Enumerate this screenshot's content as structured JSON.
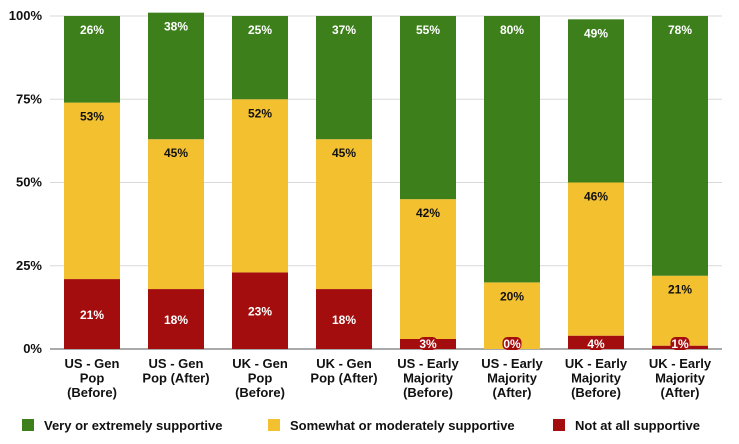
{
  "chart_data": {
    "type": "bar",
    "stacked": true,
    "title": "",
    "xlabel": "",
    "ylabel": "",
    "ylim": [
      0,
      100
    ],
    "yticks": [
      "0%",
      "25%",
      "50%",
      "75%",
      "100%"
    ],
    "ytick_values": [
      0,
      25,
      50,
      75,
      100
    ],
    "grid": true,
    "legend_position": "bottom",
    "categories": [
      [
        "US - Gen",
        "Pop",
        "(Before)"
      ],
      [
        "US - Gen",
        "Pop (After)"
      ],
      [
        "UK - Gen",
        "Pop",
        "(Before)"
      ],
      [
        "UK - Gen",
        "Pop (After)"
      ],
      [
        "US - Early",
        "Majority",
        "(Before)"
      ],
      [
        "US - Early",
        "Majority",
        "(After)"
      ],
      [
        "UK - Early",
        "Majority",
        "(Before)"
      ],
      [
        "UK - Early",
        "Majority",
        "(After)"
      ]
    ],
    "series": [
      {
        "name": "Not at all supportive",
        "color": "#a30d0d",
        "values": [
          21,
          18,
          23,
          18,
          3,
          0,
          4,
          1
        ],
        "labels": [
          "21%",
          "18%",
          "23%",
          "18%",
          "3%",
          "0%",
          "4%",
          "1%"
        ],
        "label_color": "#ffffff"
      },
      {
        "name": "Somewhat or moderately supportive",
        "color": "#f3c130",
        "values": [
          53,
          45,
          52,
          45,
          42,
          20,
          46,
          21
        ],
        "labels": [
          "53%",
          "45%",
          "52%",
          "45%",
          "42%",
          "20%",
          "46%",
          "21%"
        ],
        "label_color": "#111111"
      },
      {
        "name": "Very or extremely supportive",
        "color": "#3d7f1a",
        "values": [
          26,
          38,
          25,
          37,
          55,
          80,
          49,
          78
        ],
        "labels": [
          "26%",
          "38%",
          "25%",
          "37%",
          "55%",
          "80%",
          "49%",
          "78%"
        ],
        "label_color": "#ffffff"
      }
    ],
    "legend": [
      {
        "name": "Very or extremely supportive",
        "color": "#3d7f1a"
      },
      {
        "name": "Somewhat or moderately supportive",
        "color": "#f3c130"
      },
      {
        "name": "Not at all supportive",
        "color": "#a30d0d"
      }
    ]
  }
}
